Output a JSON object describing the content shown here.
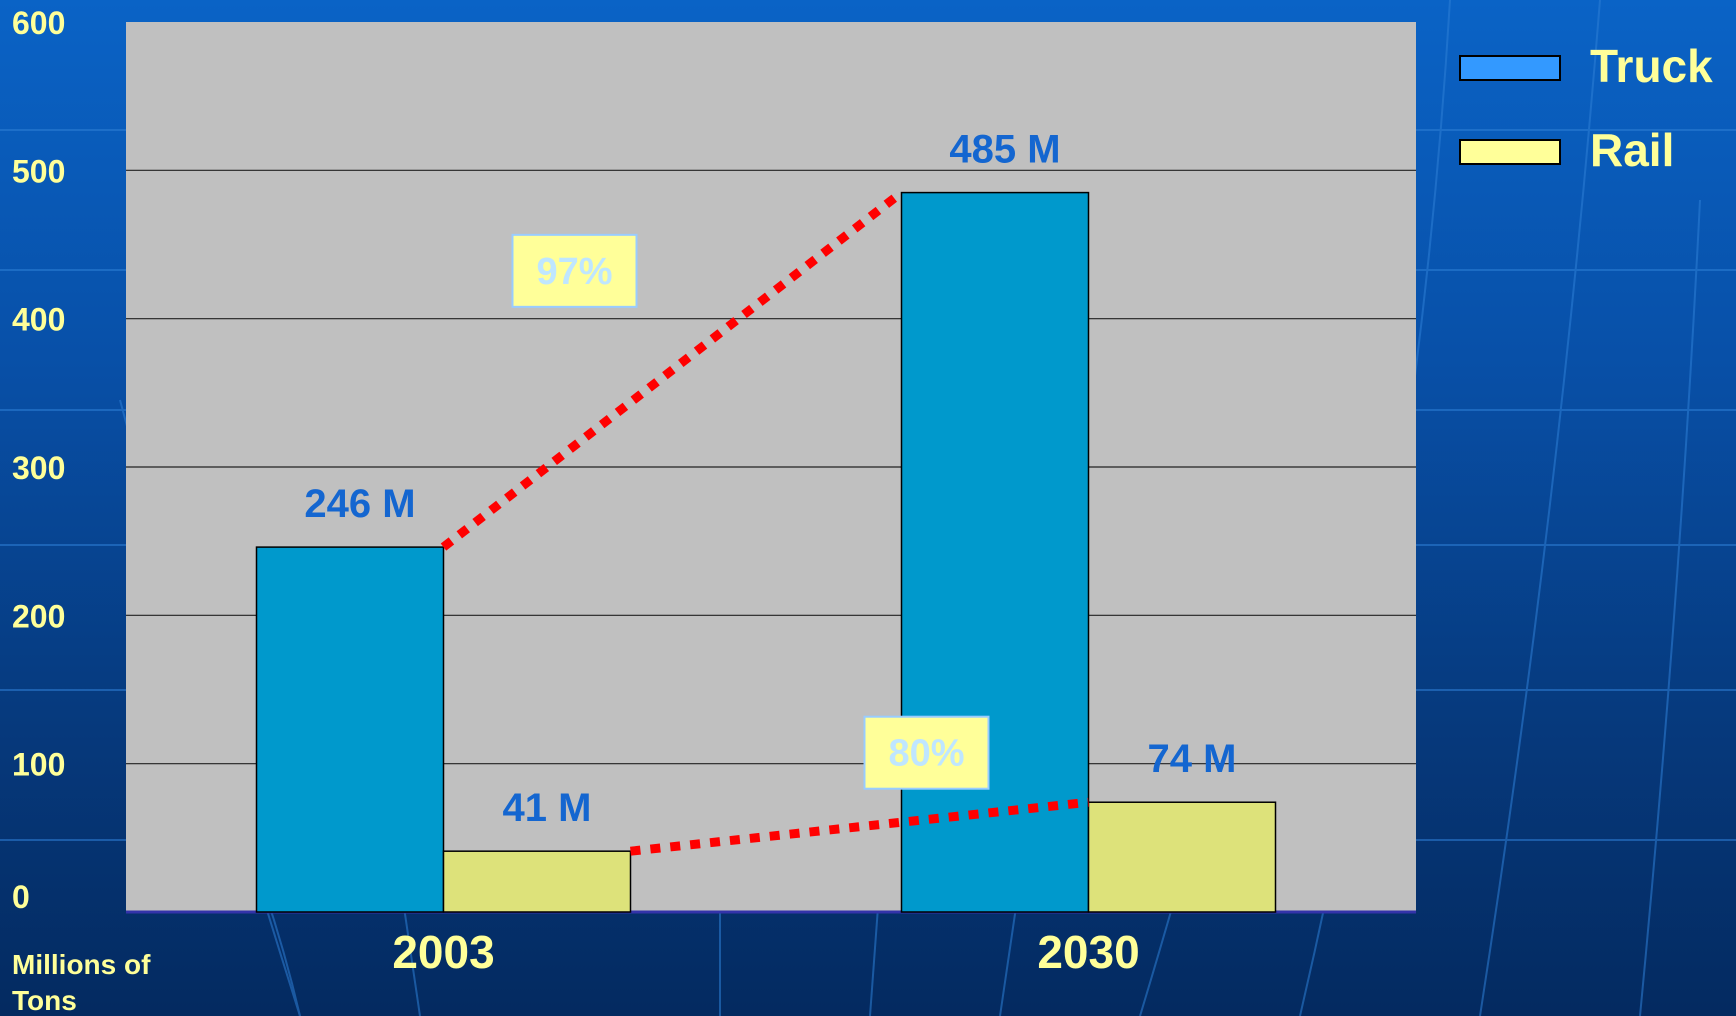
{
  "chart_data": {
    "type": "bar",
    "categories": [
      "2003",
      "2030"
    ],
    "series": [
      {
        "name": "Truck",
        "values": [
          246,
          485
        ],
        "labels": [
          "246 M",
          "485 M"
        ],
        "color": "#0099cc"
      },
      {
        "name": "Rail",
        "values": [
          41,
          74
        ],
        "labels": [
          "41 M",
          "74 M"
        ],
        "color": "#dde27a"
      }
    ],
    "ylim": [
      0,
      600
    ],
    "yticks": [
      "0",
      "100",
      "200",
      "300",
      "400",
      "500",
      "600"
    ],
    "ylabel": "Millions of Tons",
    "grid": true,
    "legend_position": "top-right",
    "annotations": [
      {
        "text": "97%",
        "series": "Truck"
      },
      {
        "text": "80%",
        "series": "Rail"
      }
    ],
    "plot_background": "#c0c0c0",
    "connector_color": "#ff0000",
    "label_color": "#1466d0",
    "axis_text_color": "#ffff99"
  }
}
